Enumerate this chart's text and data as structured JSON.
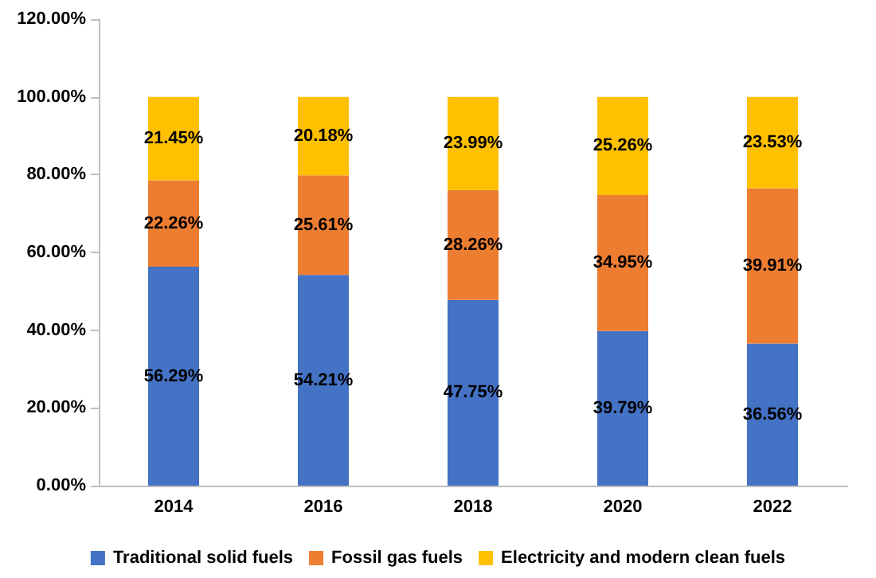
{
  "chart_data": {
    "type": "bar",
    "stacked": true,
    "categories": [
      "2014",
      "2016",
      "2018",
      "2020",
      "2022"
    ],
    "series": [
      {
        "name": "Traditional solid fuels",
        "color": "#4472c4",
        "values": [
          56.29,
          54.21,
          47.75,
          39.79,
          36.56
        ],
        "value_labels": [
          "56.29%",
          "54.21%",
          "47.75%",
          "39.79%",
          "36.56%"
        ]
      },
      {
        "name": "Fossil gas fuels",
        "color": "#ed7d31",
        "values": [
          22.26,
          25.61,
          28.26,
          34.95,
          39.91
        ],
        "value_labels": [
          "22.26%",
          "25.61%",
          "28.26%",
          "34.95%",
          "39.91%"
        ]
      },
      {
        "name": "Electricity and modern clean fuels",
        "color": "#ffc000",
        "values": [
          21.45,
          20.18,
          23.99,
          25.26,
          23.53
        ],
        "value_labels": [
          "21.45%",
          "20.18%",
          "23.99%",
          "25.26%",
          "23.53%"
        ]
      }
    ],
    "ylim": [
      0,
      120
    ],
    "yticks": [
      {
        "value": 0,
        "label": "0.00%"
      },
      {
        "value": 20,
        "label": "20.00%"
      },
      {
        "value": 40,
        "label": "40.00%"
      },
      {
        "value": 60,
        "label": "60.00%"
      },
      {
        "value": 80,
        "label": "80.00%"
      },
      {
        "value": 100,
        "label": "100.00%"
      },
      {
        "value": 120,
        "label": "120.00%"
      }
    ],
    "grid": false,
    "legend": "bottom"
  }
}
